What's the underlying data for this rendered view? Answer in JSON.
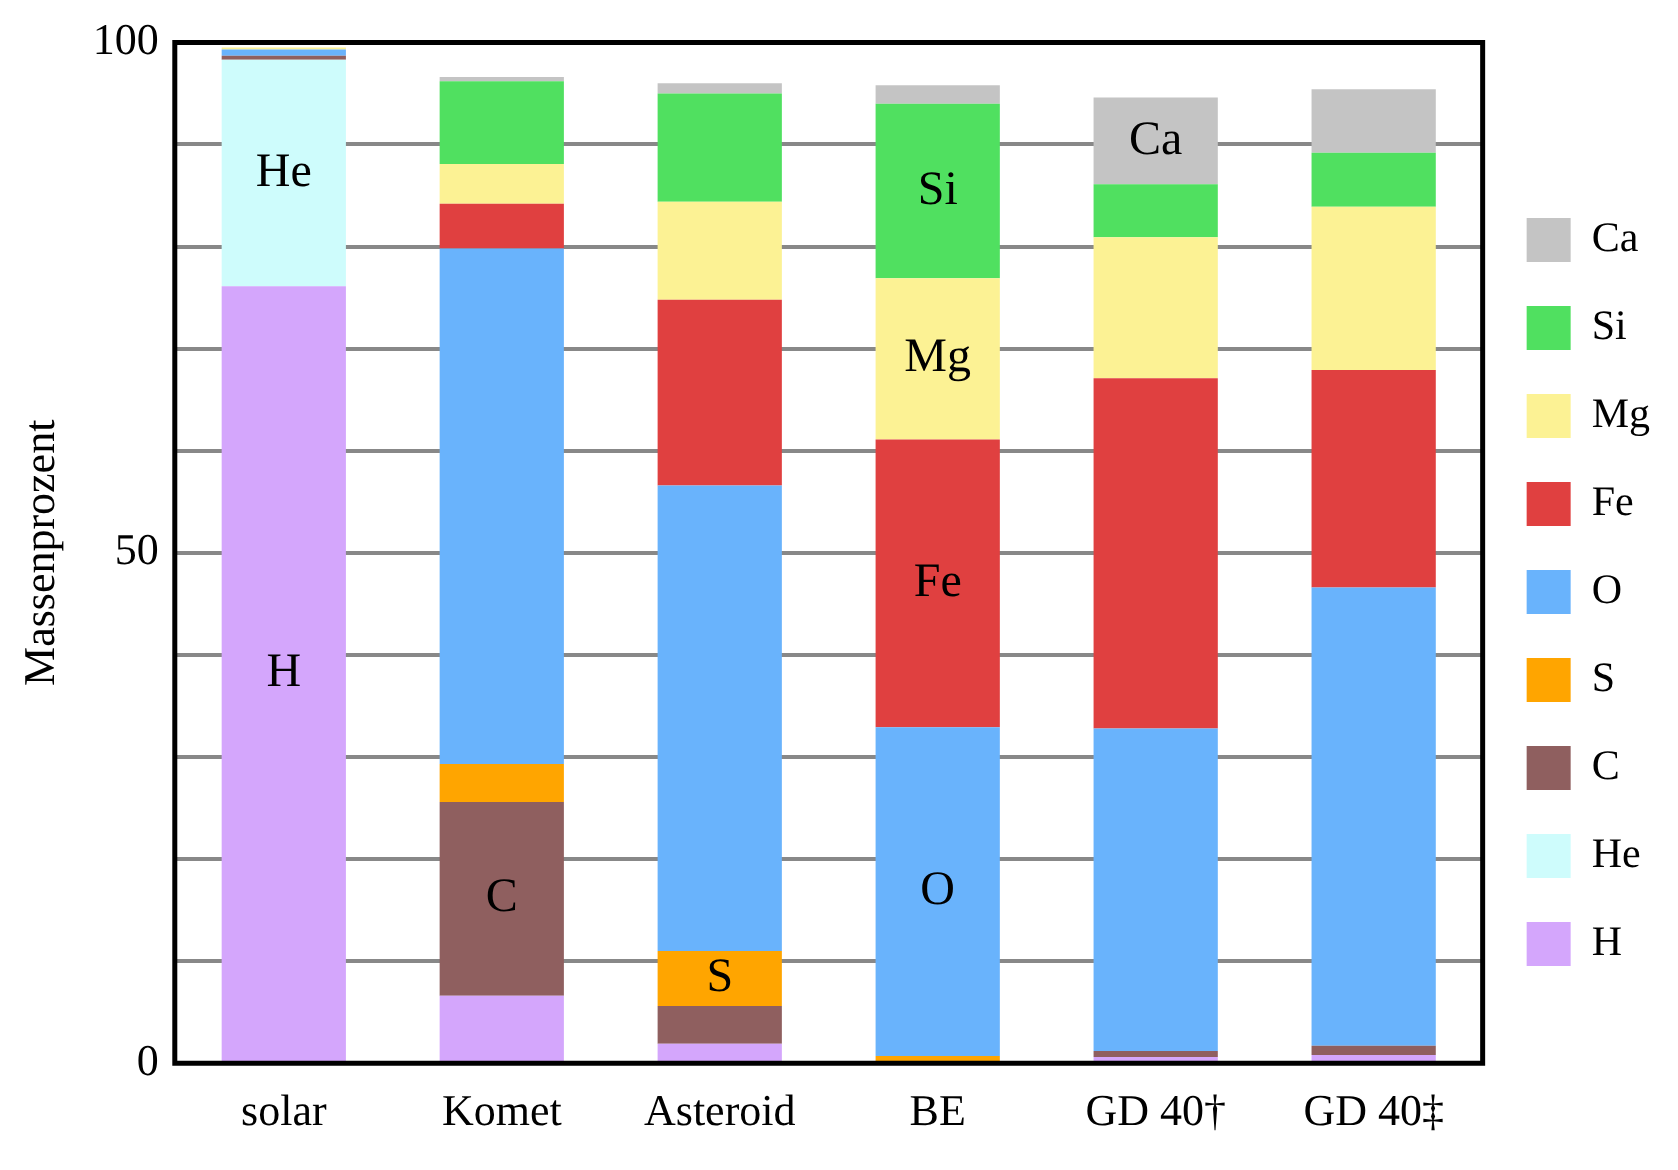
{
  "chart_data": {
    "type": "bar",
    "stacked": true,
    "ylabel": "Massenprozent",
    "categories": [
      "solar",
      "Komet",
      "Asteroid",
      "BE",
      "GD 40†",
      "GD 40‡"
    ],
    "series": [
      {
        "name": "H",
        "color": "#d4a6fc",
        "values": [
          76.1,
          6.6,
          1.9,
          0,
          0.6,
          0.8
        ],
        "value_labels": [
          "H",
          null,
          null,
          null,
          null,
          null
        ]
      },
      {
        "name": "He",
        "color": "#cefcfc",
        "values": [
          22.2,
          0,
          0,
          0,
          0,
          0
        ],
        "value_labels": [
          "He",
          null,
          null,
          null,
          null,
          null
        ]
      },
      {
        "name": "C",
        "color": "#8f5f5f",
        "values": [
          0.4,
          19.0,
          3.7,
          0,
          0.6,
          0.9
        ],
        "value_labels": [
          null,
          "C",
          null,
          null,
          null,
          null
        ]
      },
      {
        "name": "S",
        "color": "#ffa500",
        "values": [
          0,
          3.7,
          5.4,
          0.7,
          0,
          0
        ],
        "value_labels": [
          null,
          null,
          "S",
          null,
          null,
          null
        ]
      },
      {
        "name": "O",
        "color": "#69b3fc",
        "values": [
          0.6,
          50.5,
          45.6,
          32.2,
          31.6,
          44.9
        ],
        "value_labels": [
          null,
          null,
          null,
          "O",
          null,
          null
        ]
      },
      {
        "name": "Fe",
        "color": "#e04040",
        "values": [
          0,
          4.4,
          18.2,
          28.2,
          34.3,
          21.3
        ],
        "value_labels": [
          null,
          null,
          null,
          "Fe",
          null,
          null
        ]
      },
      {
        "name": "Mg",
        "color": "#fcf294",
        "values": [
          0.2,
          3.9,
          9.6,
          15.8,
          13.8,
          16.0
        ],
        "value_labels": [
          null,
          null,
          null,
          "Mg",
          null,
          null
        ]
      },
      {
        "name": "Si",
        "color": "#50e060",
        "values": [
          0,
          8.1,
          10.6,
          17.1,
          5.2,
          5.3
        ],
        "value_labels": [
          null,
          null,
          null,
          "Si",
          null,
          null
        ]
      },
      {
        "name": "Ca",
        "color": "#c4c4c4",
        "values": [
          0,
          0.4,
          1.0,
          1.8,
          8.5,
          6.2
        ],
        "value_labels": [
          null,
          null,
          null,
          null,
          "Ca",
          null
        ]
      }
    ],
    "ylim": [
      0,
      100
    ],
    "yticks": [
      0,
      {
        "value": 10,
        "label": null
      },
      {
        "value": 20,
        "label": null
      },
      {
        "value": 30,
        "label": null
      },
      {
        "value": 40,
        "label": null
      },
      50,
      {
        "value": 60,
        "label": null
      },
      {
        "value": 70,
        "label": null
      },
      {
        "value": 80,
        "label": null
      },
      {
        "value": 90,
        "label": null
      },
      100
    ],
    "grid": "y",
    "legend": "right"
  }
}
